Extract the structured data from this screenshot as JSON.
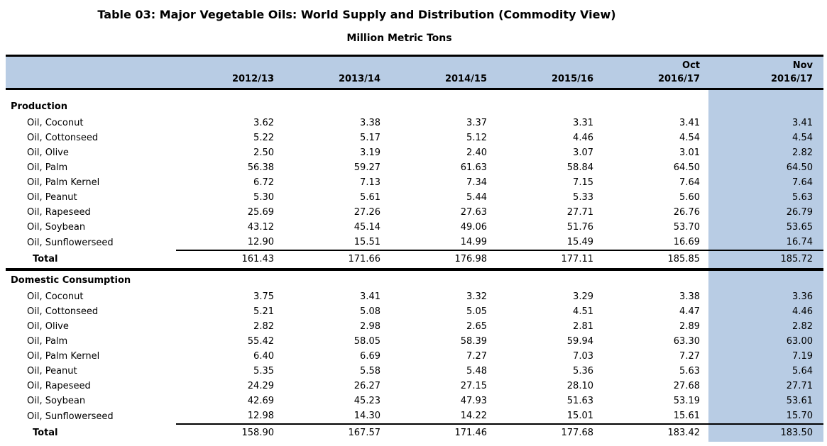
{
  "title": "Table 03: Major Vegetable Oils: World Supply and Distribution (Commodity View)",
  "subtitle": "Million Metric Tons",
  "columns": [
    {
      "month": "",
      "year": "2012/13"
    },
    {
      "month": "",
      "year": "2013/14"
    },
    {
      "month": "",
      "year": "2014/15"
    },
    {
      "month": "",
      "year": "2015/16"
    },
    {
      "month": "Oct",
      "year": "2016/17"
    },
    {
      "month": "Nov",
      "year": "2016/17"
    }
  ],
  "highlighted_column": "Nov 2016/17",
  "sections": [
    {
      "name": "Production",
      "rows": [
        {
          "label": "Oil, Coconut",
          "values": [
            "3.62",
            "3.38",
            "3.37",
            "3.31",
            "3.41",
            "3.41"
          ]
        },
        {
          "label": "Oil, Cottonseed",
          "values": [
            "5.22",
            "5.17",
            "5.12",
            "4.46",
            "4.54",
            "4.54"
          ]
        },
        {
          "label": "Oil, Olive",
          "values": [
            "2.50",
            "3.19",
            "2.40",
            "3.07",
            "3.01",
            "2.82"
          ]
        },
        {
          "label": "Oil, Palm",
          "values": [
            "56.38",
            "59.27",
            "61.63",
            "58.84",
            "64.50",
            "64.50"
          ]
        },
        {
          "label": "Oil, Palm Kernel",
          "values": [
            "6.72",
            "7.13",
            "7.34",
            "7.15",
            "7.64",
            "7.64"
          ]
        },
        {
          "label": "Oil, Peanut",
          "values": [
            "5.30",
            "5.61",
            "5.44",
            "5.33",
            "5.60",
            "5.63"
          ]
        },
        {
          "label": "Oil, Rapeseed",
          "values": [
            "25.69",
            "27.26",
            "27.63",
            "27.71",
            "26.76",
            "26.79"
          ]
        },
        {
          "label": "Oil, Soybean",
          "values": [
            "43.12",
            "45.14",
            "49.06",
            "51.76",
            "53.70",
            "53.65"
          ]
        },
        {
          "label": "Oil, Sunflowerseed",
          "values": [
            "12.90",
            "15.51",
            "14.99",
            "15.49",
            "16.69",
            "16.74"
          ]
        }
      ],
      "total": {
        "label": "Total",
        "values": [
          "161.43",
          "171.66",
          "176.98",
          "177.11",
          "185.85",
          "185.72"
        ]
      }
    },
    {
      "name": "Domestic Consumption",
      "rows": [
        {
          "label": "Oil, Coconut",
          "values": [
            "3.75",
            "3.41",
            "3.32",
            "3.29",
            "3.38",
            "3.36"
          ]
        },
        {
          "label": "Oil, Cottonseed",
          "values": [
            "5.21",
            "5.08",
            "5.05",
            "4.51",
            "4.47",
            "4.46"
          ]
        },
        {
          "label": "Oil, Olive",
          "values": [
            "2.82",
            "2.98",
            "2.65",
            "2.81",
            "2.89",
            "2.82"
          ]
        },
        {
          "label": "Oil, Palm",
          "values": [
            "55.42",
            "58.05",
            "58.39",
            "59.94",
            "63.30",
            "63.00"
          ]
        },
        {
          "label": "Oil, Palm Kernel",
          "values": [
            "6.40",
            "6.69",
            "7.27",
            "7.03",
            "7.27",
            "7.19"
          ]
        },
        {
          "label": "Oil, Peanut",
          "values": [
            "5.35",
            "5.58",
            "5.48",
            "5.36",
            "5.63",
            "5.64"
          ]
        },
        {
          "label": "Oil, Rapeseed",
          "values": [
            "24.29",
            "26.27",
            "27.15",
            "28.10",
            "27.68",
            "27.71"
          ]
        },
        {
          "label": "Oil, Soybean",
          "values": [
            "42.69",
            "45.23",
            "47.93",
            "51.63",
            "53.19",
            "53.61"
          ]
        },
        {
          "label": "Oil, Sunflowerseed",
          "values": [
            "12.98",
            "14.30",
            "14.22",
            "15.01",
            "15.61",
            "15.70"
          ]
        }
      ],
      "total": {
        "label": "Total",
        "values": [
          "158.90",
          "167.57",
          "171.46",
          "177.68",
          "183.42",
          "183.50"
        ]
      }
    }
  ],
  "colors": {
    "header_band_bg": "#B8CCE4",
    "highlight_column_bg": "#B8CCE4",
    "rule_color": "#000000",
    "text_color": "#000000"
  }
}
